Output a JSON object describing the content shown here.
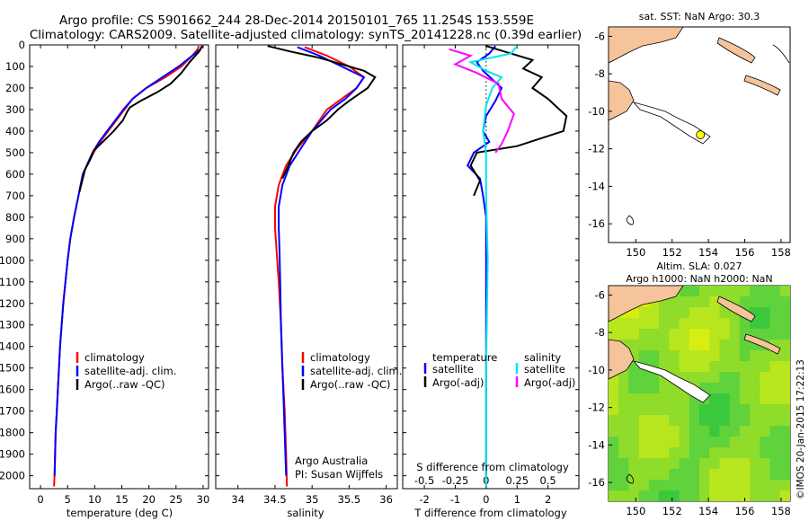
{
  "header": {
    "line1": "Argo profile: CS 5901662_244 28-Dec-2014 20150101_765 11.254S 153.559E",
    "line2": "Climatology: CARS2009. Satellite-adjusted climatology: synTS_20141228.nc (0.39d earlier)"
  },
  "colors": {
    "climatology": "#ff0000",
    "satellite": "#0000ff",
    "argo": "#000000",
    "sal_satellite": "#00e5ee",
    "sal_argo": "#ff00ff",
    "land": "#f5c49a",
    "float_marker": "#ffff00"
  },
  "credit": "©IMOS 20-Jan-2015 17:22:13",
  "chart_data": [
    {
      "id": "temperature",
      "type": "line",
      "xlabel": "temperature (deg C)",
      "xlim": [
        -2,
        31
      ],
      "xticks": [
        0,
        5,
        10,
        15,
        20,
        25,
        30
      ],
      "ylim": [
        2060,
        0
      ],
      "yticks": [
        0,
        100,
        200,
        300,
        400,
        500,
        600,
        700,
        800,
        900,
        1000,
        1100,
        1200,
        1300,
        1400,
        1500,
        1600,
        1700,
        1800,
        1900,
        2000
      ],
      "legend": [
        "climatology",
        "satellite-adj. clim.",
        "Argo(..raw -QC)"
      ],
      "series": [
        {
          "name": "climatology",
          "color": "#ff0000",
          "points": [
            [
              29.2,
              5
            ],
            [
              29.0,
              20
            ],
            [
              28.0,
              50
            ],
            [
              26.0,
              100
            ],
            [
              23.0,
              150
            ],
            [
              19.5,
              200
            ],
            [
              17.0,
              250
            ],
            [
              15.5,
              300
            ],
            [
              14.0,
              350
            ],
            [
              12.5,
              400
            ],
            [
              11.0,
              450
            ],
            [
              9.8,
              500
            ],
            [
              8.8,
              550
            ],
            [
              7.8,
              600
            ],
            [
              7.0,
              700
            ],
            [
              6.2,
              800
            ],
            [
              5.5,
              900
            ],
            [
              5.0,
              1000
            ],
            [
              4.6,
              1100
            ],
            [
              4.2,
              1200
            ],
            [
              3.9,
              1300
            ],
            [
              3.6,
              1400
            ],
            [
              3.4,
              1500
            ],
            [
              3.2,
              1600
            ],
            [
              3.0,
              1700
            ],
            [
              2.8,
              1800
            ],
            [
              2.7,
              1900
            ],
            [
              2.6,
              2000
            ],
            [
              2.5,
              2050
            ]
          ]
        },
        {
          "name": "satellite",
          "color": "#0000ff",
          "points": [
            [
              29.8,
              5
            ],
            [
              29.5,
              20
            ],
            [
              28.0,
              50
            ],
            [
              25.5,
              100
            ],
            [
              22.5,
              150
            ],
            [
              19.5,
              200
            ],
            [
              17.0,
              250
            ],
            [
              15.3,
              300
            ],
            [
              13.8,
              350
            ],
            [
              12.3,
              400
            ],
            [
              10.8,
              450
            ],
            [
              9.6,
              500
            ],
            [
              8.7,
              550
            ],
            [
              7.8,
              600
            ],
            [
              7.0,
              700
            ],
            [
              6.2,
              800
            ],
            [
              5.5,
              900
            ],
            [
              5.0,
              1000
            ],
            [
              4.6,
              1100
            ],
            [
              4.2,
              1200
            ],
            [
              3.9,
              1300
            ],
            [
              3.6,
              1400
            ],
            [
              3.4,
              1500
            ],
            [
              3.2,
              1600
            ],
            [
              3.0,
              1700
            ],
            [
              2.8,
              1800
            ],
            [
              2.7,
              1900
            ],
            [
              2.6,
              2000
            ]
          ]
        },
        {
          "name": "argo",
          "color": "#000000",
          "points": [
            [
              29.8,
              5
            ],
            [
              29.3,
              30
            ],
            [
              27.5,
              80
            ],
            [
              26.0,
              130
            ],
            [
              24.0,
              180
            ],
            [
              21.5,
              220
            ],
            [
              18.5,
              260
            ],
            [
              16.5,
              290
            ],
            [
              16.0,
              310
            ],
            [
              15.2,
              350
            ],
            [
              13.5,
              400
            ],
            [
              11.5,
              450
            ],
            [
              9.8,
              490
            ],
            [
              9.2,
              530
            ],
            [
              8.2,
              580
            ],
            [
              7.2,
              680
            ]
          ]
        }
      ]
    },
    {
      "id": "salinity",
      "type": "line",
      "xlabel": "salinity",
      "xlim": [
        33.7,
        36.15
      ],
      "xticks": [
        34,
        34.5,
        35,
        35.5,
        36
      ],
      "ylim": [
        2060,
        0
      ],
      "legend": [
        "climatology",
        "satellite-adj. clim.",
        "Argo(..raw -QC)"
      ],
      "footnote": [
        "Argo Australia",
        "PI: Susan Wijffels"
      ],
      "series": [
        {
          "name": "climatology",
          "color": "#ff0000",
          "points": [
            [
              34.9,
              10
            ],
            [
              35.2,
              50
            ],
            [
              35.5,
              100
            ],
            [
              35.7,
              150
            ],
            [
              35.6,
              200
            ],
            [
              35.4,
              250
            ],
            [
              35.2,
              300
            ],
            [
              35.0,
              400
            ],
            [
              34.8,
              480
            ],
            [
              34.65,
              560
            ],
            [
              34.55,
              650
            ],
            [
              34.5,
              750
            ],
            [
              34.5,
              850
            ],
            [
              34.52,
              950
            ],
            [
              34.55,
              1100
            ],
            [
              34.58,
              1300
            ],
            [
              34.6,
              1500
            ],
            [
              34.63,
              1700
            ],
            [
              34.65,
              1900
            ],
            [
              34.66,
              2050
            ]
          ]
        },
        {
          "name": "satellite",
          "color": "#0000ff",
          "points": [
            [
              34.8,
              10
            ],
            [
              35.1,
              50
            ],
            [
              35.4,
              100
            ],
            [
              35.7,
              150
            ],
            [
              35.6,
              200
            ],
            [
              35.45,
              250
            ],
            [
              35.25,
              300
            ],
            [
              35.0,
              400
            ],
            [
              34.85,
              480
            ],
            [
              34.7,
              560
            ],
            [
              34.6,
              650
            ],
            [
              34.55,
              750
            ],
            [
              34.55,
              850
            ],
            [
              34.56,
              950
            ],
            [
              34.57,
              1100
            ],
            [
              34.58,
              1300
            ],
            [
              34.6,
              1500
            ],
            [
              34.62,
              1700
            ],
            [
              34.64,
              1900
            ],
            [
              34.65,
              2000
            ]
          ]
        },
        {
          "name": "argo",
          "color": "#000000",
          "points": [
            [
              34.4,
              5
            ],
            [
              34.7,
              30
            ],
            [
              35.1,
              60
            ],
            [
              35.4,
              90
            ],
            [
              35.7,
              120
            ],
            [
              35.85,
              150
            ],
            [
              35.75,
              200
            ],
            [
              35.5,
              260
            ],
            [
              35.35,
              300
            ],
            [
              35.2,
              350
            ],
            [
              35.0,
              400
            ],
            [
              34.85,
              450
            ],
            [
              34.75,
              500
            ],
            [
              34.68,
              560
            ],
            [
              34.6,
              620
            ]
          ]
        }
      ]
    },
    {
      "id": "difference",
      "type": "line",
      "xlabel": "T difference from climatology",
      "xlabel_top": "S difference from climatology",
      "xlim": [
        -2.7,
        3.0
      ],
      "xticks": [
        -2,
        -1,
        0,
        1,
        2
      ],
      "sticks": [
        "-0.5",
        "-0.25",
        "0",
        "0.25",
        "0.5"
      ],
      "ylim": [
        2060,
        0
      ],
      "legend_temperature": {
        "title": "temperature",
        "items": [
          "satellite",
          "Argo(-adj)"
        ]
      },
      "legend_salinity": {
        "title": "salinity",
        "items": [
          "satellite",
          "Argo(-adj)"
        ]
      },
      "series": [
        {
          "name": "T satellite",
          "color": "#0000ff",
          "points": [
            [
              0.3,
              5
            ],
            [
              0.1,
              40
            ],
            [
              -0.3,
              80
            ],
            [
              -0.1,
              120
            ],
            [
              0.2,
              160
            ],
            [
              0.5,
              200
            ],
            [
              0.3,
              260
            ],
            [
              0.0,
              330
            ],
            [
              -0.1,
              400
            ],
            [
              0.1,
              450
            ],
            [
              -0.4,
              500
            ],
            [
              -0.6,
              560
            ],
            [
              -0.2,
              620
            ],
            [
              -0.1,
              700
            ],
            [
              0.0,
              800
            ],
            [
              0.0,
              1000
            ],
            [
              0.0,
              1500
            ],
            [
              0.0,
              2000
            ]
          ]
        },
        {
          "name": "T argo",
          "color": "#000000",
          "points": [
            [
              0.0,
              5
            ],
            [
              0.8,
              40
            ],
            [
              1.5,
              70
            ],
            [
              1.2,
              110
            ],
            [
              1.8,
              150
            ],
            [
              1.5,
              200
            ],
            [
              2.0,
              250
            ],
            [
              2.6,
              330
            ],
            [
              2.5,
              400
            ],
            [
              1.0,
              470
            ],
            [
              -0.3,
              500
            ],
            [
              -0.5,
              560
            ],
            [
              -0.2,
              630
            ],
            [
              -0.4,
              700
            ]
          ]
        },
        {
          "name": "S satellite",
          "color": "#00e5ee",
          "points": [
            [
              1.0,
              5
            ],
            [
              0.8,
              40
            ],
            [
              -0.5,
              80
            ],
            [
              0.0,
              120
            ],
            [
              0.5,
              150
            ],
            [
              0.2,
              200
            ],
            [
              0.0,
              280
            ],
            [
              -0.1,
              400
            ],
            [
              0.0,
              500
            ],
            [
              0.0,
              700
            ],
            [
              0.05,
              1000
            ],
            [
              0.0,
              1500
            ],
            [
              0.0,
              2050
            ]
          ]
        },
        {
          "name": "S argo",
          "color": "#ff00ff",
          "points": [
            [
              -1.2,
              20
            ],
            [
              -0.5,
              50
            ],
            [
              -1.0,
              90
            ],
            [
              -0.3,
              130
            ],
            [
              0.4,
              180
            ],
            [
              0.5,
              250
            ],
            [
              0.9,
              320
            ],
            [
              0.7,
              400
            ],
            [
              0.5,
              460
            ],
            [
              0.3,
              500
            ]
          ]
        }
      ]
    },
    {
      "id": "sst_map",
      "type": "map",
      "title": "sat. SST: NaN Argo: 30.3",
      "xlim": [
        148.5,
        158.5
      ],
      "ylim": [
        -17,
        -5.5
      ],
      "xticks": [
        150,
        152,
        154,
        156,
        158
      ],
      "yticks": [
        -6,
        -8,
        -10,
        -12,
        -14,
        -16
      ],
      "float_position": [
        153.559,
        -11.254
      ]
    },
    {
      "id": "sla_map",
      "type": "heatmap",
      "title": "Altim. SLA: 0.027",
      "subtitle": "Argo h1000: NaN h2000: NaN",
      "xlim": [
        148.5,
        158.5
      ],
      "ylim": [
        -17,
        -5.5
      ],
      "xticks": [
        150,
        152,
        154,
        156,
        158
      ],
      "yticks": [
        -6,
        -8,
        -10,
        -12,
        -14,
        -16
      ],
      "colorscale": [
        "#3cc83c",
        "#5fd23c",
        "#8fdc2a",
        "#b8e61e",
        "#d8ee12"
      ]
    }
  ]
}
